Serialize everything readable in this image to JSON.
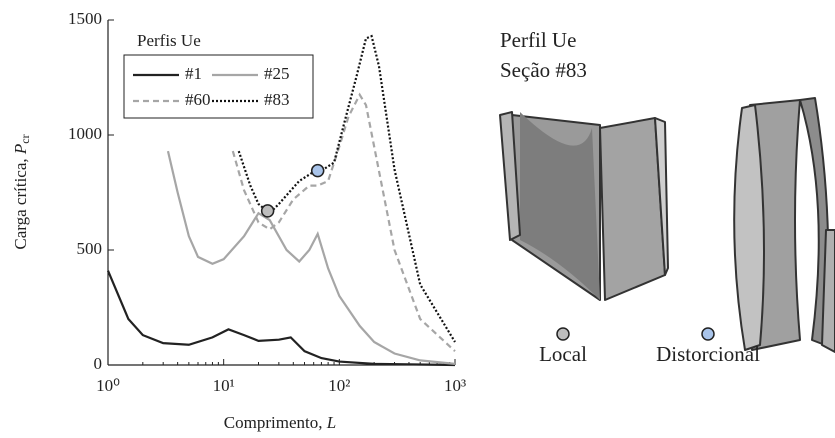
{
  "chart_data": {
    "type": "line",
    "xlabel": {
      "text": "Comprimento, ",
      "symbol": "L"
    },
    "ylabel": {
      "text": "Carga crítica, ",
      "symbol": "P",
      "subscript": "cr"
    },
    "legend_title": "Perfis Ue",
    "log_x": true,
    "xlim": [
      1,
      1000
    ],
    "xticks": [
      {
        "value": 1,
        "label": "10⁰"
      },
      {
        "value": 10,
        "label": "10¹"
      },
      {
        "value": 100,
        "label": "10²"
      },
      {
        "value": 1000,
        "label": "10³"
      }
    ],
    "ylim": [
      0,
      1500
    ],
    "yticks": [
      0,
      500,
      1000,
      1500
    ],
    "series": [
      {
        "name": "#1",
        "color": "#222222",
        "dash": "solid",
        "x": [
          1,
          1.5,
          2,
          3,
          5,
          8,
          11,
          15,
          20,
          30,
          38,
          50,
          70,
          100,
          200,
          1000
        ],
        "values": [
          410,
          200,
          130,
          95,
          88,
          120,
          155,
          130,
          105,
          110,
          120,
          60,
          30,
          15,
          5,
          0
        ]
      },
      {
        "name": "#25",
        "color": "#a6a6a6",
        "dash": "solid",
        "x": [
          3.3,
          4,
          5,
          6,
          8,
          10,
          15,
          20,
          25,
          35,
          45,
          55,
          65,
          80,
          100,
          150,
          200,
          300,
          500,
          1000
        ],
        "values": [
          930,
          750,
          560,
          470,
          440,
          460,
          560,
          660,
          630,
          500,
          450,
          500,
          570,
          420,
          300,
          170,
          100,
          50,
          20,
          5
        ]
      },
      {
        "name": "#60",
        "color": "#a6a6a6",
        "dash": "dashed",
        "x": [
          12,
          15,
          20,
          25,
          30,
          40,
          55,
          65,
          80,
          100,
          120,
          150,
          170,
          200,
          300,
          500,
          1000
        ],
        "values": [
          930,
          760,
          620,
          590,
          620,
          720,
          780,
          780,
          800,
          950,
          1080,
          1175,
          1130,
          950,
          500,
          200,
          60
        ]
      },
      {
        "name": "#83",
        "color": "#111111",
        "dash": "dotted",
        "x": [
          13.5,
          17,
          20,
          25,
          30,
          45,
          60,
          70,
          90,
          110,
          140,
          170,
          190,
          220,
          300,
          500,
          1000
        ],
        "values": [
          930,
          780,
          700,
          660,
          700,
          800,
          840,
          845,
          880,
          1050,
          1250,
          1420,
          1430,
          1300,
          850,
          350,
          100
        ]
      }
    ],
    "markers": [
      {
        "label": "Local",
        "x": 24,
        "y": 670,
        "color": "#bdbdbd"
      },
      {
        "label": "Distorcional",
        "x": 65,
        "y": 845,
        "color": "#a9c4ea"
      }
    ]
  },
  "panel": {
    "title": "Perfil Ue",
    "subtitle": "Seção #83"
  }
}
